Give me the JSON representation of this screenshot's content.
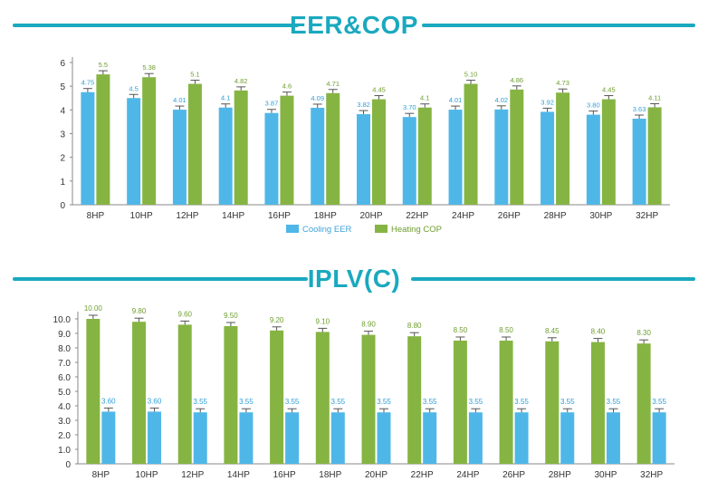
{
  "sections": {
    "top_title": "EER&COP",
    "bottom_title": "IPLV(C)"
  },
  "colors": {
    "accent": "#1aa9bf",
    "cooling": "#4fb7e8",
    "heating": "#86b443",
    "cooling_label": "#2f9fd6",
    "heating_label": "#6e9e2e"
  },
  "chart_data": [
    {
      "type": "bar",
      "title": "EER&COP",
      "categories": [
        "8HP",
        "10HP",
        "12HP",
        "14HP",
        "16HP",
        "18HP",
        "20HP",
        "22HP",
        "24HP",
        "26HP",
        "28HP",
        "30HP",
        "32HP"
      ],
      "series": [
        {
          "name": "Cooling EER",
          "values": [
            4.75,
            4.5,
            4.01,
            4.1,
            3.87,
            4.09,
            3.82,
            3.7,
            4.01,
            4.02,
            3.92,
            3.8,
            3.63
          ],
          "labels": [
            "4.75",
            "4.5",
            "4.01",
            "4.1",
            "3.87",
            "4.09",
            "3.82",
            "3.70",
            "4.01",
            "4.02",
            "3.92",
            "3.80",
            "3.63"
          ]
        },
        {
          "name": "Heating COP",
          "values": [
            5.5,
            5.38,
            5.1,
            4.82,
            4.6,
            4.71,
            4.45,
            4.1,
            5.1,
            4.86,
            4.73,
            4.45,
            4.11
          ],
          "labels": [
            "5.5",
            "5.38",
            "5.1",
            "4.82",
            "4.6",
            "4.71",
            "4.45",
            "4.1",
            "5.10",
            "4.86",
            "4.73",
            "4.45",
            "4.11"
          ]
        }
      ],
      "ylim": [
        0,
        6
      ],
      "yticks": [
        "0",
        "1",
        "2",
        "3",
        "4",
        "5",
        "6"
      ],
      "legend": "bottom",
      "grid": false
    },
    {
      "type": "bar",
      "title": "IPLV(C)",
      "categories": [
        "8HP",
        "10HP",
        "12HP",
        "14HP",
        "16HP",
        "18HP",
        "20HP",
        "22HP",
        "24HP",
        "26HP",
        "28HP",
        "30HP",
        "32HP"
      ],
      "series": [
        {
          "values": [
            10.0,
            9.8,
            9.6,
            9.5,
            9.2,
            9.1,
            8.9,
            8.8,
            8.5,
            8.5,
            8.45,
            8.4,
            8.3
          ],
          "labels": [
            "10.00",
            "9.80",
            "9.60",
            "9.50",
            "9.20",
            "9.10",
            "8.90",
            "8.80",
            "8.50",
            "8.50",
            "8.45",
            "8.40",
            "8.30"
          ]
        },
        {
          "values": [
            3.6,
            3.6,
            3.55,
            3.55,
            3.55,
            3.55,
            3.55,
            3.55,
            3.55,
            3.55,
            3.55,
            3.55,
            3.55
          ],
          "labels": [
            "3.60",
            "3.60",
            "3.55",
            "3.55",
            "3.55",
            "3.55",
            "3.55",
            "3.55",
            "3.55",
            "3.55",
            "3.55",
            "3.55",
            "3.55"
          ]
        }
      ],
      "ylim": [
        0,
        10
      ],
      "yticks": [
        "0",
        "1.0",
        "2.0",
        "3.0",
        "4.0",
        "5.0",
        "6.0",
        "7.0",
        "8.0",
        "9.0",
        "10.0"
      ],
      "grid": false
    }
  ]
}
